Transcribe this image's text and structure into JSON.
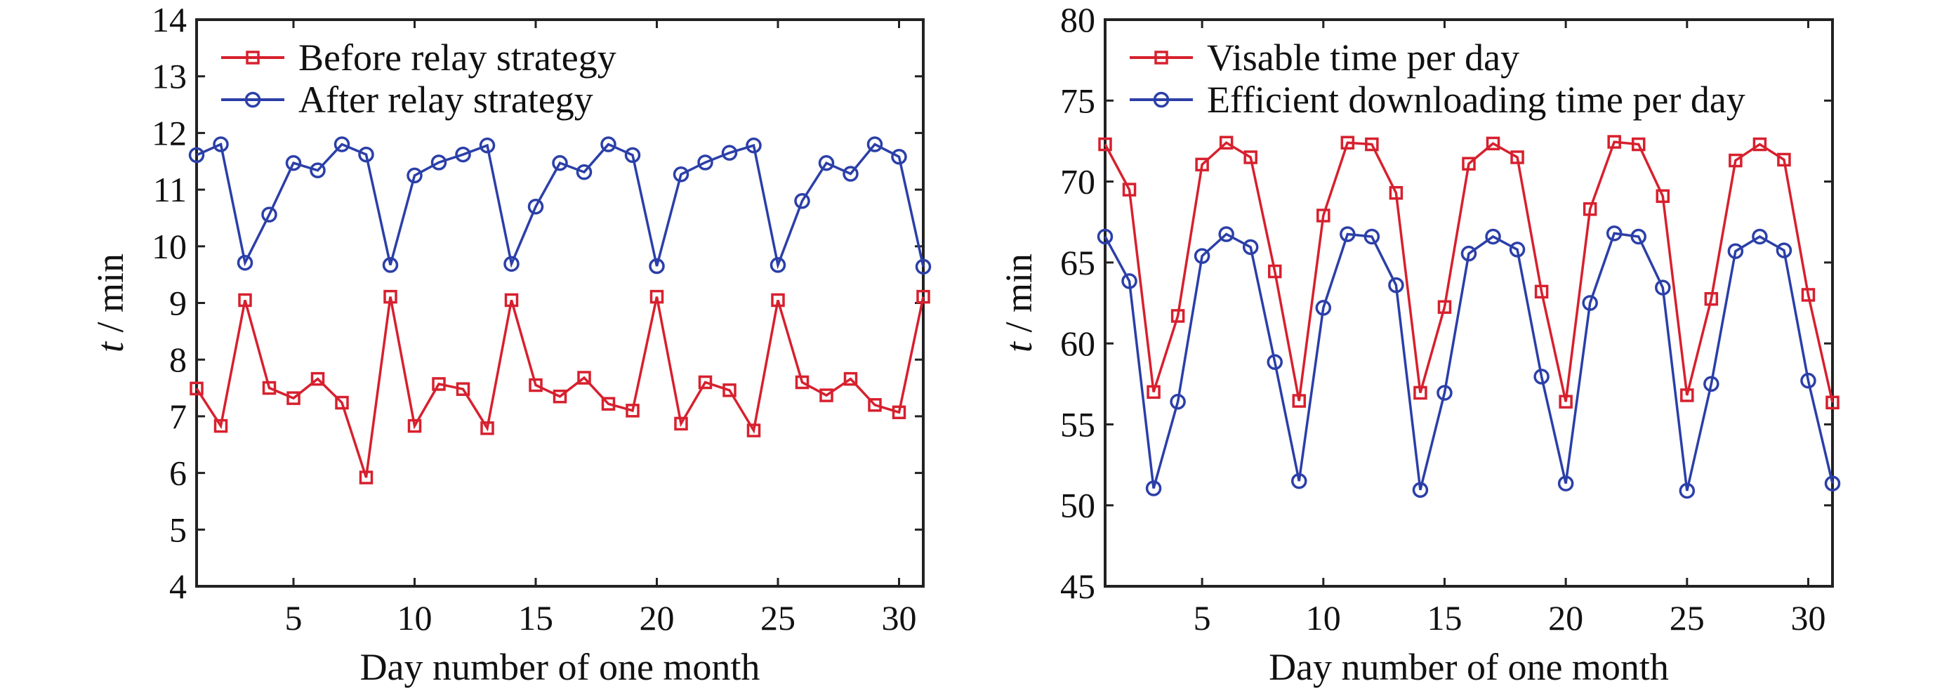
{
  "chart_data": [
    {
      "type": "line",
      "xlabel": "Day number of one month",
      "ylabel_italic": "t",
      "ylabel_rest": " / min",
      "xlim": [
        1,
        31
      ],
      "ylim": [
        4,
        14
      ],
      "xticks": [
        5,
        10,
        15,
        20,
        25,
        30
      ],
      "yticks": [
        4,
        5,
        6,
        7,
        8,
        9,
        10,
        11,
        12,
        13,
        14
      ],
      "grid": false,
      "legend_placement": "top-left",
      "x": [
        1,
        2,
        3,
        4,
        5,
        6,
        7,
        8,
        9,
        10,
        11,
        12,
        13,
        14,
        15,
        16,
        17,
        18,
        19,
        20,
        21,
        22,
        23,
        24,
        25,
        26,
        27,
        28,
        29,
        30,
        31
      ],
      "series": [
        {
          "name": "Before relay strategy",
          "color": "#d7202e",
          "marker": "square",
          "values": [
            7.49,
            6.83,
            9.05,
            7.5,
            7.32,
            7.66,
            7.24,
            5.92,
            9.11,
            6.83,
            7.57,
            7.48,
            6.79,
            9.05,
            7.55,
            7.35,
            7.68,
            7.22,
            7.1,
            9.11,
            6.87,
            7.6,
            7.46,
            6.75,
            9.05,
            7.6,
            7.37,
            7.66,
            7.2,
            7.07,
            9.11
          ]
        },
        {
          "name": "After relay strategy",
          "color": "#2b3fa8",
          "marker": "circle",
          "values": [
            11.61,
            11.8,
            9.71,
            10.56,
            11.47,
            11.34,
            11.8,
            11.62,
            9.67,
            11.25,
            11.48,
            11.62,
            11.78,
            9.69,
            10.7,
            11.47,
            11.31,
            11.8,
            11.61,
            9.65,
            11.27,
            11.48,
            11.65,
            11.78,
            9.67,
            10.8,
            11.47,
            11.28,
            11.8,
            11.58,
            9.64
          ]
        }
      ]
    },
    {
      "type": "line",
      "xlabel": "Day number of one month",
      "ylabel_italic": "t",
      "ylabel_rest": " / min",
      "xlim": [
        1,
        31
      ],
      "ylim": [
        45,
        80
      ],
      "xticks": [
        5,
        10,
        15,
        20,
        25,
        30
      ],
      "yticks": [
        45,
        50,
        55,
        60,
        65,
        70,
        75,
        80
      ],
      "grid": false,
      "legend_placement": "top-left",
      "x": [
        1,
        2,
        3,
        4,
        5,
        6,
        7,
        8,
        9,
        10,
        11,
        12,
        13,
        14,
        15,
        16,
        17,
        18,
        19,
        20,
        21,
        22,
        23,
        24,
        25,
        26,
        27,
        28,
        29,
        30,
        31
      ],
      "series": [
        {
          "name": "Visable time per day",
          "color": "#d7202e",
          "marker": "square",
          "values": [
            72.3,
            69.5,
            57.0,
            61.7,
            71.05,
            72.4,
            71.5,
            64.45,
            56.45,
            67.9,
            72.4,
            72.3,
            69.3,
            56.95,
            62.25,
            71.1,
            72.35,
            71.5,
            63.2,
            56.4,
            68.3,
            72.45,
            72.3,
            69.1,
            56.8,
            62.75,
            71.3,
            72.3,
            71.35,
            63.0,
            56.35
          ]
        },
        {
          "name": "Efficient downloading time per day",
          "color": "#2b3fa8",
          "marker": "circle",
          "values": [
            66.6,
            63.85,
            51.05,
            56.4,
            65.4,
            66.75,
            65.95,
            58.85,
            51.5,
            62.2,
            66.75,
            66.6,
            63.6,
            50.95,
            56.95,
            65.55,
            66.6,
            65.8,
            57.95,
            51.35,
            62.5,
            66.8,
            66.6,
            63.45,
            50.9,
            57.5,
            65.7,
            66.6,
            65.75,
            57.7,
            51.35
          ]
        }
      ]
    }
  ]
}
